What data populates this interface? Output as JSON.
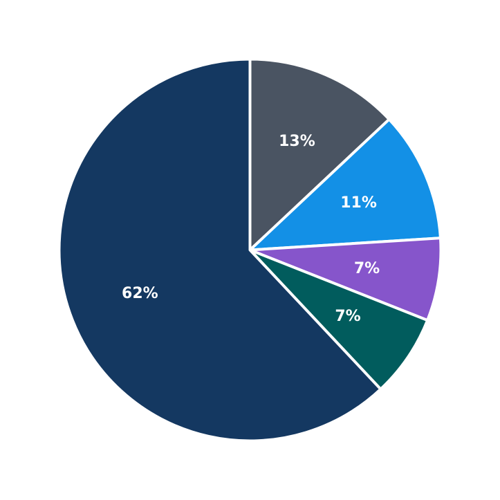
{
  "chart_data": {
    "type": "pie",
    "start": "12 o'clock",
    "direction": "clockwise",
    "slices": [
      {
        "value": 13,
        "label": "13%",
        "color": "#4a5462"
      },
      {
        "value": 11,
        "label": "11%",
        "color": "#1390e6"
      },
      {
        "value": 7,
        "label": "7%",
        "color": "#8655cb"
      },
      {
        "value": 7,
        "label": "7%",
        "color": "#015c5d"
      },
      {
        "value": 62,
        "label": "62%",
        "color": "#143861"
      }
    ]
  }
}
